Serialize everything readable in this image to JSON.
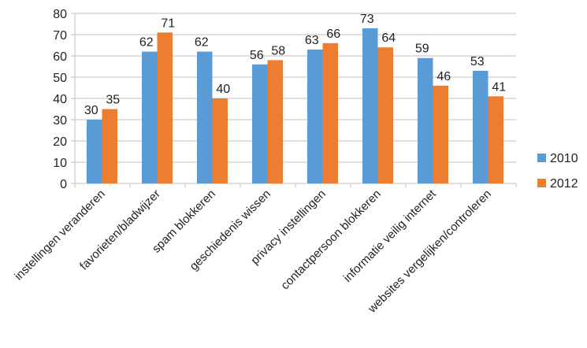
{
  "chart_data": {
    "type": "bar",
    "title": "",
    "xlabel": "",
    "ylabel": "",
    "ylim": [
      0,
      80
    ],
    "yticks": [
      0,
      10,
      20,
      30,
      40,
      50,
      60,
      70,
      80
    ],
    "grid": true,
    "legend_position": "right",
    "categories": [
      "instellingen veranderen",
      "favorieten/bladwijzer",
      "spam blokkeren",
      "geschiedenis wissen",
      "privacy instellingen",
      "contactpersoon blokkeren",
      "informatie veilig internet",
      "websites vergelijken/controleren"
    ],
    "series": [
      {
        "name": "2010",
        "color": "#5B9BD5",
        "values": [
          30,
          62,
          62,
          56,
          63,
          73,
          59,
          53
        ]
      },
      {
        "name": "2012",
        "color": "#ED7D31",
        "values": [
          35,
          71,
          40,
          58,
          66,
          64,
          46,
          41
        ]
      }
    ]
  }
}
